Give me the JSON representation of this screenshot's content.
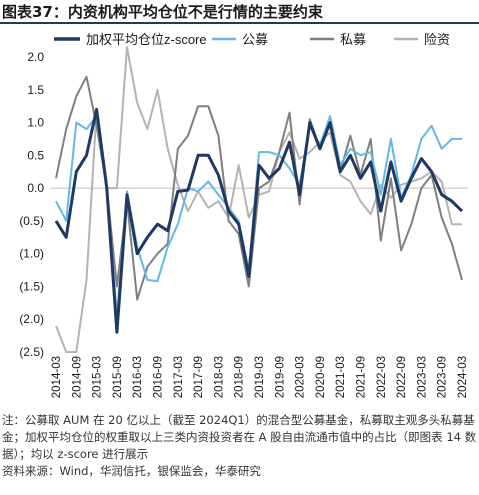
{
  "figure": {
    "title": "图表37：内资机构平均仓位不是行情的主要约束",
    "note": "注：公募取 AUM 在 20 亿以上（截至 2024Q1）的混合型公募基金，私募取主观多头私募基金；加权平均仓位的权重取以上三类内资投资者在 A 股自由流通市值中的占比（即图表 14 数据）；均以 z-score 进行展示",
    "source": "资料来源：Wind，华润信托，银保监会，华泰研究"
  },
  "chart_data": {
    "type": "line",
    "ylim": [
      -2.5,
      2.0
    ],
    "yticks": [
      "2.0",
      "1.5",
      "1.0",
      "0.5",
      "0.0",
      "(0.5)",
      "(1.0)",
      "(1.5)",
      "(2.0)",
      "(2.5)"
    ],
    "ytick_values": [
      2.0,
      1.5,
      1.0,
      0.5,
      0.0,
      -0.5,
      -1.0,
      -1.5,
      -2.0,
      -2.5
    ],
    "x": [
      "2014-03",
      "2014-06",
      "2014-09",
      "2014-12",
      "2015-03",
      "2015-06",
      "2015-09",
      "2015-12",
      "2016-03",
      "2016-06",
      "2016-09",
      "2016-12",
      "2017-03",
      "2017-06",
      "2017-09",
      "2017-12",
      "2018-03",
      "2018-06",
      "2018-09",
      "2018-12",
      "2019-03",
      "2019-06",
      "2019-09",
      "2019-12",
      "2020-03",
      "2020-06",
      "2020-09",
      "2020-12",
      "2021-03",
      "2021-06",
      "2021-09",
      "2021-12",
      "2022-03",
      "2022-06",
      "2022-09",
      "2022-12",
      "2023-03",
      "2023-06",
      "2023-09",
      "2023-12",
      "2024-03"
    ],
    "xtick_labels": [
      "2014-03",
      "2014-09",
      "2015-03",
      "2015-09",
      "2016-03",
      "2016-09",
      "2017-03",
      "2017-09",
      "2018-03",
      "2018-09",
      "2019-03",
      "2019-09",
      "2020-03",
      "2020-09",
      "2021-03",
      "2021-09",
      "2022-03",
      "2022-09",
      "2023-03",
      "2023-09",
      "2024-03"
    ],
    "series": [
      {
        "name": "加权平均仓位z-score",
        "color": "#1f3864",
        "width": 3,
        "values": [
          -0.5,
          -0.75,
          0.25,
          0.5,
          1.2,
          0.0,
          -2.2,
          -0.1,
          -1.0,
          -0.75,
          -0.55,
          -0.65,
          -0.05,
          -0.03,
          0.5,
          0.5,
          0.2,
          -0.35,
          -0.55,
          -1.35,
          0.35,
          0.15,
          0.3,
          0.7,
          -0.1,
          1.0,
          0.6,
          1.0,
          0.25,
          0.5,
          0.15,
          0.4,
          -0.35,
          0.4,
          -0.2,
          0.15,
          0.45,
          0.25,
          -0.1,
          -0.2,
          -0.35
        ]
      },
      {
        "name": "公募",
        "color": "#63b8e5",
        "width": 2,
        "values": [
          -0.2,
          -0.5,
          1.0,
          0.9,
          1.1,
          -0.05,
          -1.95,
          -0.05,
          -0.9,
          -1.4,
          -1.42,
          -0.9,
          -0.55,
          0.0,
          -0.05,
          0.1,
          -0.1,
          -0.3,
          -0.5,
          -1.25,
          0.55,
          0.55,
          0.5,
          0.3,
          0.05,
          0.95,
          0.65,
          1.1,
          0.35,
          0.6,
          0.5,
          0.55,
          -0.1,
          0.75,
          -0.15,
          0.2,
          0.75,
          0.95,
          0.6,
          0.75,
          0.75
        ]
      },
      {
        "name": "私募",
        "color": "#7f7f7f",
        "width": 2,
        "values": [
          0.15,
          0.9,
          1.4,
          1.7,
          0.95,
          0.0,
          -1.5,
          -0.2,
          -1.7,
          -1.2,
          -1.0,
          -0.85,
          0.6,
          0.8,
          1.25,
          1.25,
          0.8,
          -0.5,
          -0.7,
          -1.5,
          0.0,
          0.1,
          0.55,
          1.15,
          -0.25,
          1.05,
          0.6,
          1.0,
          0.25,
          0.8,
          0.2,
          0.75,
          -0.8,
          0.15,
          -0.95,
          -0.55,
          0.0,
          0.2,
          -0.45,
          -0.85,
          -1.4
        ]
      },
      {
        "name": "险资",
        "color": "#b3b3b3",
        "width": 2,
        "values": [
          -2.1,
          -2.55,
          -2.5,
          -1.4,
          1.2,
          0.0,
          0.0,
          2.15,
          1.3,
          0.9,
          1.5,
          0.6,
          0.05,
          -0.35,
          -0.05,
          -0.3,
          -0.2,
          -0.45,
          0.35,
          -0.45,
          -0.1,
          -0.05,
          0.55,
          0.85,
          0.45,
          0.55,
          0.7,
          0.85,
          0.2,
          0.1,
          -0.2,
          -0.4,
          0.05,
          -0.15,
          0.05,
          0.1,
          0.15,
          0.25,
          0.1,
          -0.55,
          -0.55
        ]
      }
    ]
  }
}
